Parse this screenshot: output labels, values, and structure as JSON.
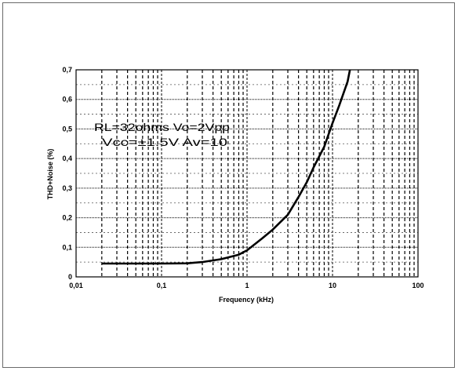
{
  "chart_data": {
    "type": "line",
    "title": "",
    "xlabel": "Frequency (kHz)",
    "ylabel": "THD+Noise (%)",
    "xscale": "log",
    "xlim": [
      0.01,
      100
    ],
    "ylim": [
      0,
      0.7
    ],
    "x_ticks": [
      0.01,
      0.1,
      1,
      10,
      100
    ],
    "x_tick_labels": [
      "0,01",
      "0,1",
      "1",
      "10",
      "100"
    ],
    "y_ticks": [
      0,
      0.1,
      0.2,
      0.3,
      0.4,
      0.5,
      0.6,
      0.7
    ],
    "y_tick_labels": [
      "0",
      "0,1",
      "0,2",
      "0,3",
      "0,4",
      "0,5",
      "0,6",
      "0,7"
    ],
    "grid": true,
    "annotations": [
      "RL=32ohms  Vo=2Vpp",
      "Vcc=±1.5V  Av=10"
    ],
    "series": [
      {
        "x": [
          0.02,
          0.05,
          0.1,
          0.2,
          0.3,
          0.5,
          0.8,
          1.0,
          1.5,
          2.0,
          3.0,
          4.0,
          5.0,
          6.0,
          8.0,
          10.0,
          12.0,
          15.0,
          16.0
        ],
        "y": [
          0.045,
          0.045,
          0.045,
          0.046,
          0.05,
          0.06,
          0.075,
          0.09,
          0.13,
          0.16,
          0.21,
          0.27,
          0.32,
          0.37,
          0.44,
          0.52,
          0.58,
          0.66,
          0.7
        ]
      }
    ]
  }
}
